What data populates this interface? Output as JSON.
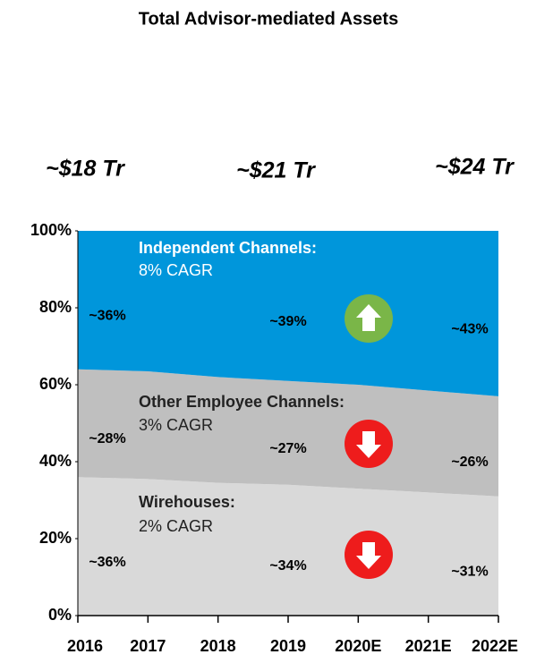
{
  "chart_data": {
    "type": "stacked_area",
    "title": "Total Advisor-mediated Assets",
    "categories": [
      "2016",
      "2017",
      "2018",
      "2019",
      "2020E",
      "2021E",
      "2022E"
    ],
    "annotations": [
      "~$18 Tr",
      "~$21 Tr",
      "~$24 Tr"
    ],
    "series": [
      {
        "name": "Wirehouses:",
        "note": "2% CAGR",
        "color": "#d9d9d9",
        "values": [
          36,
          35.5,
          34.5,
          34,
          33,
          32,
          31
        ],
        "value_labels": [
          "~36%",
          null,
          null,
          "~34%",
          null,
          null,
          "~31%"
        ]
      },
      {
        "name": "Other Employee Channels:",
        "note": "3% CAGR",
        "color": "#bfbfbf",
        "values": [
          28,
          28,
          27.5,
          27,
          27,
          26.5,
          26
        ],
        "value_labels": [
          "~28%",
          null,
          null,
          "~27%",
          null,
          null,
          "~26%"
        ]
      },
      {
        "name": "Independent Channels:",
        "note": "8% CAGR",
        "color": "#0096db",
        "values": [
          36,
          36.5,
          38,
          39,
          40,
          41.5,
          43
        ],
        "value_labels": [
          "~36%",
          null,
          null,
          "~39%",
          null,
          null,
          "~43%"
        ]
      }
    ],
    "ylim": [
      0,
      100
    ],
    "yticks": [
      {
        "value": 0,
        "label": "0%"
      },
      {
        "value": 20,
        "label": "20%"
      },
      {
        "value": 40,
        "label": "40%"
      },
      {
        "value": 60,
        "label": "60%"
      },
      {
        "value": 80,
        "label": "80%"
      },
      {
        "value": 100,
        "label": "100%"
      }
    ]
  }
}
